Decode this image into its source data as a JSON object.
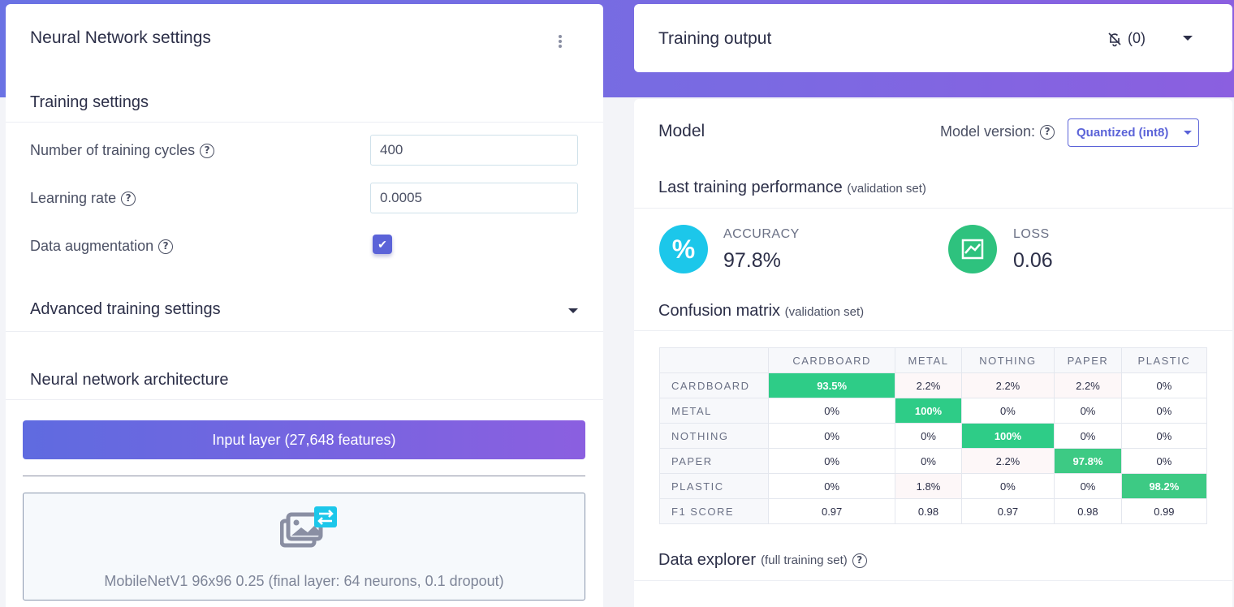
{
  "left": {
    "title": "Neural Network settings",
    "training_settings": "Training settings",
    "fields": {
      "cycles_label": "Number of training cycles",
      "cycles_value": "400",
      "lr_label": "Learning rate",
      "lr_value": "0.0005",
      "aug_label": "Data augmentation",
      "aug_checked": true
    },
    "advanced": "Advanced training settings",
    "architecture": "Neural network architecture",
    "input_layer": "Input layer (27,648 features)",
    "model_block": "MobileNetV1 96x96 0.25 (final layer: 64 neurons, 0.1 dropout)"
  },
  "output": {
    "title": "Training output",
    "notif_count": "(0)"
  },
  "model": {
    "title": "Model",
    "version_label": "Model version:",
    "version_value": "Quantized (int8)",
    "perf_title": "Last training performance",
    "perf_sub": "(validation set)",
    "accuracy_label": "ACCURACY",
    "accuracy_value": "97.8%",
    "loss_label": "LOSS",
    "loss_value": "0.06",
    "cm_title": "Confusion matrix",
    "cm_sub": "(validation set)",
    "explorer_title": "Data explorer",
    "explorer_sub": "(full training set)"
  },
  "confusion": {
    "columns": [
      "CARDBOARD",
      "METAL",
      "NOTHING",
      "PAPER",
      "PLASTIC"
    ],
    "rows": [
      {
        "label": "CARDBOARD",
        "cells": [
          "93.5%",
          "2.2%",
          "2.2%",
          "2.2%",
          "0%"
        ]
      },
      {
        "label": "METAL",
        "cells": [
          "0%",
          "100%",
          "0%",
          "0%",
          "0%"
        ]
      },
      {
        "label": "NOTHING",
        "cells": [
          "0%",
          "0%",
          "100%",
          "0%",
          "0%"
        ]
      },
      {
        "label": "PAPER",
        "cells": [
          "0%",
          "0%",
          "2.2%",
          "97.8%",
          "0%"
        ]
      },
      {
        "label": "PLASTIC",
        "cells": [
          "0%",
          "1.8%",
          "0%",
          "0%",
          "98.2%"
        ]
      },
      {
        "label": "F1 SCORE",
        "cells": [
          "0.97",
          "0.98",
          "0.97",
          "0.98",
          "0.99"
        ]
      }
    ]
  },
  "colors": {
    "accent": "#5b63d8",
    "accuracy_circle": "#1cc7ea",
    "loss_circle": "#2ec27e",
    "diag_cell": "#2ecc87"
  }
}
